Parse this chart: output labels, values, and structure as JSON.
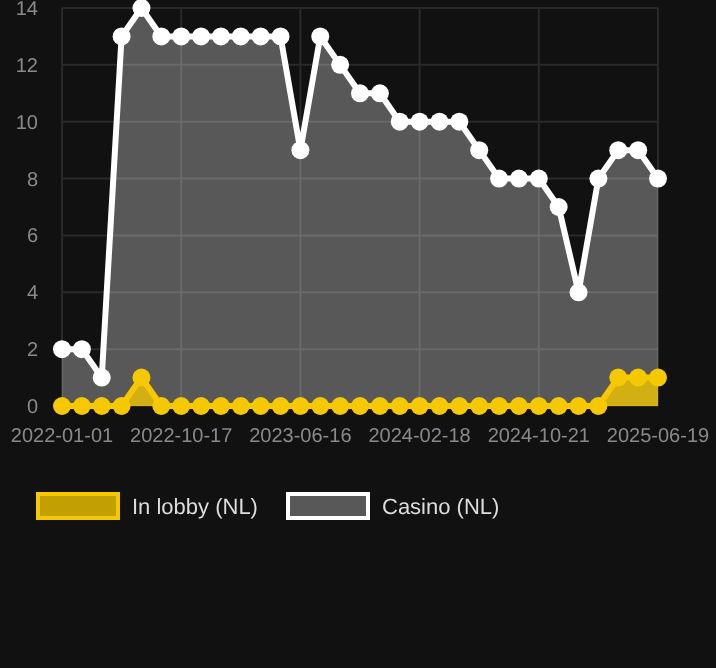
{
  "chart_data": {
    "type": "area",
    "categories": [
      "2022-01-01",
      null,
      null,
      null,
      null,
      null,
      "2022-10-17",
      null,
      null,
      null,
      null,
      null,
      "2023-06-16",
      null,
      null,
      null,
      null,
      null,
      "2024-02-18",
      null,
      null,
      null,
      null,
      null,
      "2024-10-21",
      null,
      null,
      null,
      null,
      null,
      "2025-06-19"
    ],
    "series": [
      {
        "name": "In lobby (NL)",
        "color": "#f5c800",
        "values": [
          0,
          0,
          0,
          0,
          1,
          0,
          0,
          0,
          0,
          0,
          0,
          0,
          0,
          0,
          0,
          0,
          0,
          0,
          0,
          0,
          0,
          0,
          0,
          0,
          0,
          0,
          0,
          0,
          1,
          1,
          1
        ]
      },
      {
        "name": "Casino (NL)",
        "color": "#ffffff",
        "values": [
          2,
          2,
          1,
          13,
          14,
          13,
          13,
          13,
          13,
          13,
          13,
          13,
          9,
          13,
          12,
          11,
          11,
          10,
          10,
          10,
          10,
          9,
          8,
          8,
          8,
          7,
          4,
          8,
          9,
          9,
          8
        ]
      }
    ],
    "ylim": [
      0,
      14
    ],
    "yticks": [
      0,
      2,
      4,
      6,
      8,
      10,
      12,
      14
    ],
    "grid": true,
    "legend": "bottom",
    "marker": "circle",
    "line_style": "solid"
  }
}
